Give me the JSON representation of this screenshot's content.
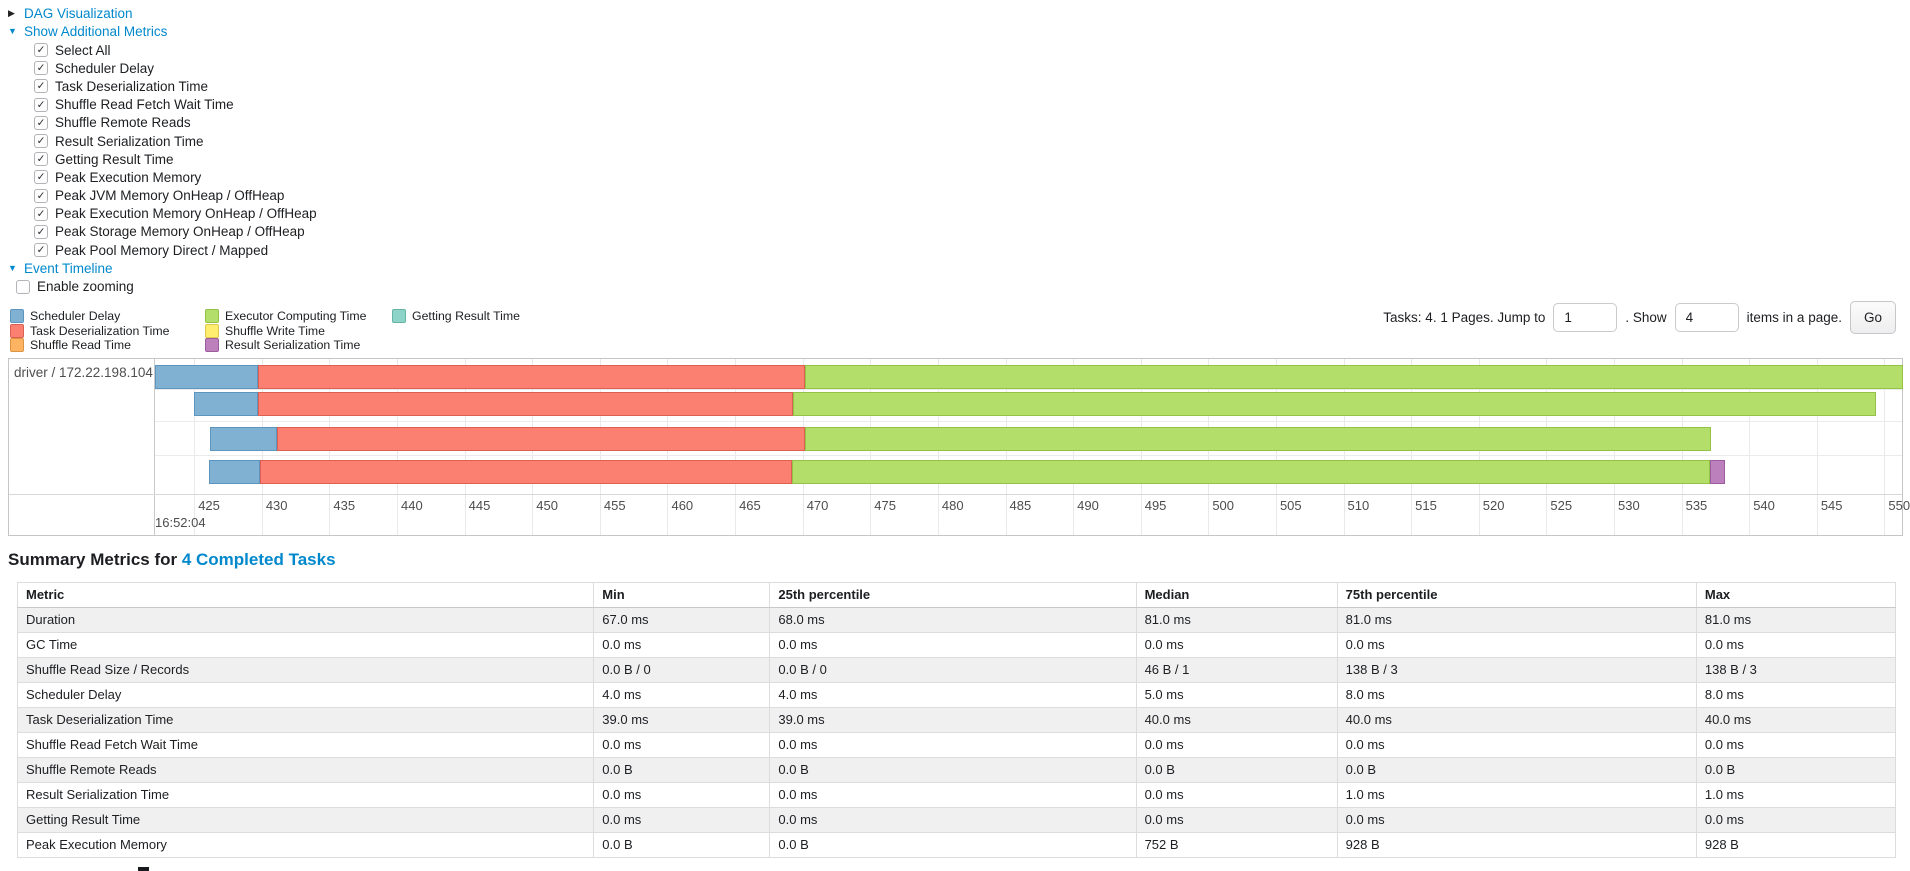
{
  "colors": {
    "link": "#0088cc",
    "scheduler_delay": {
      "fill": "#80B1D3",
      "border": "#5d95bf"
    },
    "deserialization": {
      "fill": "#FB8072",
      "border": "#dd5f51"
    },
    "shuffle_read": {
      "fill": "#FDB462",
      "border": "#dd9440"
    },
    "executor_computing": {
      "fill": "#B3DE69",
      "border": "#93c346"
    },
    "shuffle_write": {
      "fill": "#FFED6F",
      "border": "#ddc94d"
    },
    "result_serialization": {
      "fill": "#BC80BD",
      "border": "#9c5c9d"
    },
    "getting_result": {
      "fill": "#8DD3C7",
      "border": "#67b4a6"
    }
  },
  "toggles": {
    "dag": {
      "arrow": "▶",
      "label": "DAG Visualization"
    },
    "additional_metrics": {
      "arrow": "▼",
      "label": "Show Additional Metrics"
    },
    "event_timeline": {
      "arrow": "▼",
      "label": "Event Timeline"
    }
  },
  "metrics_panel": {
    "items": [
      {
        "label": "Select All",
        "checked": true
      },
      {
        "label": "Scheduler Delay",
        "checked": true
      },
      {
        "label": "Task Deserialization Time",
        "checked": true
      },
      {
        "label": "Shuffle Read Fetch Wait Time",
        "checked": true
      },
      {
        "label": "Shuffle Remote Reads",
        "checked": true
      },
      {
        "label": "Result Serialization Time",
        "checked": true
      },
      {
        "label": "Getting Result Time",
        "checked": true
      },
      {
        "label": "Peak Execution Memory",
        "checked": true
      },
      {
        "label": "Peak JVM Memory OnHeap / OffHeap",
        "checked": true
      },
      {
        "label": "Peak Execution Memory OnHeap / OffHeap",
        "checked": true
      },
      {
        "label": "Peak Storage Memory OnHeap / OffHeap",
        "checked": true
      },
      {
        "label": "Peak Pool Memory Direct / Mapped",
        "checked": true
      }
    ]
  },
  "enable_zooming": {
    "label": "Enable zooming",
    "checked": false
  },
  "legend": {
    "columns": [
      [
        {
          "key": "scheduler_delay",
          "label": "Scheduler Delay"
        },
        {
          "key": "deserialization",
          "label": "Task Deserialization Time"
        },
        {
          "key": "shuffle_read",
          "label": "Shuffle Read Time"
        }
      ],
      [
        {
          "key": "executor_computing",
          "label": "Executor Computing Time"
        },
        {
          "key": "shuffle_write",
          "label": "Shuffle Write Time"
        },
        {
          "key": "result_serialization",
          "label": "Result Serialization Time"
        }
      ],
      [
        {
          "key": "getting_result",
          "label": "Getting Result Time"
        }
      ]
    ]
  },
  "pagination": {
    "tasks_text": "Tasks: 4. 1 Pages. Jump to",
    "jump_value": "1",
    "show_text": ". Show",
    "page_size_value": "4",
    "items_text": "items in a page.",
    "go_label": "Go"
  },
  "timeline": {
    "group_label": "driver / 172.22.198.104",
    "axis": {
      "min": 422.1,
      "max": 551.3,
      "tick_start": 425,
      "tick_end": 550,
      "tick_step": 5,
      "major_label": "16:52:04"
    },
    "tasks": [
      {
        "segments": [
          {
            "kind": "scheduler_delay",
            "start": 422.1,
            "end": 429.7
          },
          {
            "kind": "deserialization",
            "start": 429.7,
            "end": 470.2
          },
          {
            "kind": "executor_computing",
            "start": 470.2,
            "end": 551.4
          }
        ]
      },
      {
        "segments": [
          {
            "kind": "scheduler_delay",
            "start": 425.0,
            "end": 429.7
          },
          {
            "kind": "deserialization",
            "start": 429.7,
            "end": 469.3
          },
          {
            "kind": "executor_computing",
            "start": 469.3,
            "end": 549.4
          }
        ]
      },
      {
        "segments": [
          {
            "kind": "scheduler_delay",
            "start": 426.2,
            "end": 431.1
          },
          {
            "kind": "deserialization",
            "start": 431.1,
            "end": 470.2
          },
          {
            "kind": "executor_computing",
            "start": 470.2,
            "end": 537.2
          }
        ]
      },
      {
        "segments": [
          {
            "kind": "scheduler_delay",
            "start": 426.1,
            "end": 429.9
          },
          {
            "kind": "deserialization",
            "start": 429.9,
            "end": 469.2
          },
          {
            "kind": "executor_computing",
            "start": 469.2,
            "end": 537.1
          },
          {
            "kind": "result_serialization",
            "start": 537.1,
            "end": 538.2
          }
        ]
      }
    ]
  },
  "summary": {
    "title_prefix": "Summary Metrics for ",
    "title_link": "4 Completed Tasks",
    "columns": [
      "Metric",
      "Min",
      "25th percentile",
      "Median",
      "75th percentile",
      "Max"
    ],
    "rows": [
      [
        "Duration",
        "67.0 ms",
        "68.0 ms",
        "81.0 ms",
        "81.0 ms",
        "81.0 ms"
      ],
      [
        "GC Time",
        "0.0 ms",
        "0.0 ms",
        "0.0 ms",
        "0.0 ms",
        "0.0 ms"
      ],
      [
        "Shuffle Read Size / Records",
        "0.0 B / 0",
        "0.0 B / 0",
        "46 B / 1",
        "138 B / 3",
        "138 B / 3"
      ],
      [
        "Scheduler Delay",
        "4.0 ms",
        "4.0 ms",
        "5.0 ms",
        "8.0 ms",
        "8.0 ms"
      ],
      [
        "Task Deserialization Time",
        "39.0 ms",
        "39.0 ms",
        "40.0 ms",
        "40.0 ms",
        "40.0 ms"
      ],
      [
        "Shuffle Read Fetch Wait Time",
        "0.0 ms",
        "0.0 ms",
        "0.0 ms",
        "0.0 ms",
        "0.0 ms"
      ],
      [
        "Shuffle Remote Reads",
        "0.0 B",
        "0.0 B",
        "0.0 B",
        "0.0 B",
        "0.0 B"
      ],
      [
        "Result Serialization Time",
        "0.0 ms",
        "0.0 ms",
        "0.0 ms",
        "1.0 ms",
        "1.0 ms"
      ],
      [
        "Getting Result Time",
        "0.0 ms",
        "0.0 ms",
        "0.0 ms",
        "0.0 ms",
        "0.0 ms"
      ],
      [
        "Peak Execution Memory",
        "0.0 B",
        "0.0 B",
        "752 B",
        "928 B",
        "928 B"
      ]
    ]
  }
}
